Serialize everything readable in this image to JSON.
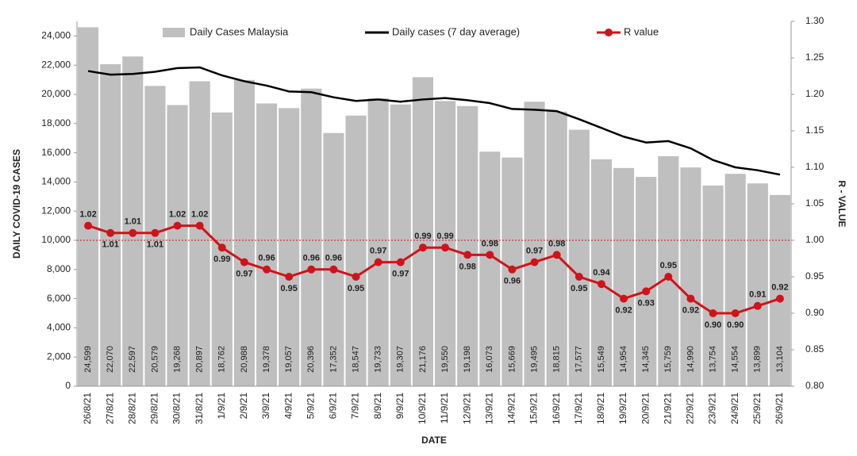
{
  "chart_data": {
    "type": "bar",
    "x_label": "DATE",
    "y_label": "DAILY COVID-19 CASES",
    "y2_label": "R - VALUE",
    "categories": [
      "26/8/21",
      "27/8/21",
      "28/8/21",
      "29/8/21",
      "30/8/21",
      "31/8/21",
      "1/9/21",
      "2/9/21",
      "3/9/21",
      "4/9/21",
      "5/9/21",
      "6/9/21",
      "7/9/21",
      "8/9/21",
      "9/9/21",
      "10/9/21",
      "11/9/21",
      "12/9/21",
      "13/9/21",
      "14/9/21",
      "15/9/21",
      "16/9/21",
      "17/9/21",
      "18/9/21",
      "19/9/21",
      "20/9/21",
      "21/9/21",
      "22/9/21",
      "23/9/21",
      "24/9/21",
      "25/9/21",
      "26/9/21"
    ],
    "series": [
      {
        "name": "Daily Cases Malaysia",
        "type": "bar",
        "color": "#bfbfbf",
        "values": [
          24599,
          22070,
          22597,
          20579,
          19268,
          20897,
          18762,
          20988,
          19378,
          19057,
          20396,
          17352,
          18547,
          19733,
          19307,
          21176,
          19550,
          19198,
          16073,
          15669,
          19495,
          18815,
          17577,
          15549,
          14954,
          14345,
          15759,
          14990,
          13754,
          14554,
          13899,
          13104
        ],
        "value_labels": [
          "24,599",
          "22,070",
          "22,597",
          "20,579",
          "19,268",
          "20,897",
          "18,762",
          "20,988",
          "19,378",
          "19,057",
          "20,396",
          "17,352",
          "18,547",
          "19,733",
          "19,307",
          "21,176",
          "19,550",
          "19,198",
          "16,073",
          "15,669",
          "19,495",
          "18,815",
          "17,577",
          "15,549",
          "14,954",
          "14,345",
          "15,759",
          "14,990",
          "13,754",
          "14,554",
          "13,899",
          "13,104"
        ]
      },
      {
        "name": "Daily cases (7 day average)",
        "type": "line",
        "color": "#000000",
        "values": [
          21600,
          21350,
          21400,
          21550,
          21800,
          21850,
          21300,
          20900,
          20600,
          20200,
          20150,
          19800,
          19550,
          19650,
          19500,
          19650,
          19750,
          19600,
          19400,
          19000,
          18950,
          18850,
          18300,
          17700,
          17100,
          16700,
          16800,
          16300,
          15500,
          15000,
          14800,
          14500
        ]
      },
      {
        "name": "R value",
        "type": "line",
        "axis": "y2",
        "color": "#d0131a",
        "markers": true,
        "values": [
          1.02,
          1.01,
          1.01,
          1.01,
          1.02,
          1.02,
          0.99,
          0.97,
          0.96,
          0.95,
          0.96,
          0.96,
          0.95,
          0.97,
          0.97,
          0.99,
          0.99,
          0.98,
          0.98,
          0.96,
          0.97,
          0.98,
          0.95,
          0.94,
          0.92,
          0.93,
          0.95,
          0.92,
          0.9,
          0.9,
          0.91,
          0.92
        ],
        "value_labels": [
          "1.02",
          "1.01",
          "1.01",
          "1.01",
          "1.02",
          "1.02",
          "0.99",
          "0.97",
          "0.96",
          "0.95",
          "0.96",
          "0.96",
          "0.95",
          "0.97",
          "0.97",
          "0.99",
          "0.99",
          "0.98",
          "0.98",
          "0.96",
          "0.97",
          "0.98",
          "0.95",
          "0.94",
          "0.92",
          "0.93",
          "0.95",
          "0.92",
          "0.90",
          "0.90",
          "0.91",
          "0.92"
        ]
      }
    ],
    "ylim": [
      0,
      25000
    ],
    "yticks": [
      0,
      {
        "value": 2000,
        "label": "2,000"
      },
      {
        "value": 4000,
        "label": "4,000"
      },
      {
        "value": 6000,
        "label": "6,000"
      },
      {
        "value": 8000,
        "label": "8,000"
      },
      {
        "value": 10000,
        "label": "10,000"
      },
      {
        "value": 12000,
        "label": "12,000"
      },
      {
        "value": 14000,
        "label": "14,000"
      },
      {
        "value": 16000,
        "label": "16,000"
      },
      {
        "value": 18000,
        "label": "18,000"
      },
      {
        "value": 20000,
        "label": "20,000"
      },
      {
        "value": 22000,
        "label": "22,000"
      },
      {
        "value": 24000,
        "label": "24,000"
      }
    ],
    "y2lim": [
      0.8,
      1.3
    ],
    "y2ticks": [
      {
        "value": 0.8,
        "label": "0.80"
      },
      0.85,
      {
        "value": 0.9,
        "label": "0.90"
      },
      0.95,
      {
        "value": 1,
        "label": "1.00"
      },
      1.05,
      {
        "value": 1.1,
        "label": "1.10"
      },
      1.15,
      {
        "value": 1.2,
        "label": "1.20"
      },
      1.25,
      {
        "value": 1.3,
        "label": "1.30"
      }
    ],
    "reference_line": {
      "value": 1,
      "axis": "y2",
      "color": "#d0131a"
    },
    "legend": "top"
  }
}
